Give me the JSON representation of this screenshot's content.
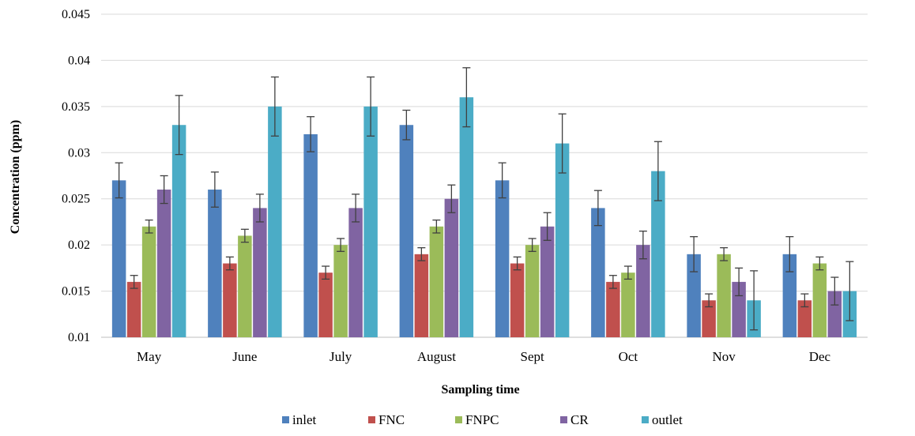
{
  "chart_data": {
    "type": "bar",
    "title": "",
    "xlabel": "Sampling time",
    "ylabel": "Concentration (ppm)",
    "ylim": [
      0.01,
      0.045
    ],
    "yticks": [
      "0.01",
      "0.015",
      "0.02",
      "0.025",
      "0.03",
      "0.035",
      "0.04",
      "0.045"
    ],
    "grid": true,
    "legend_position": "bottom",
    "categories": [
      "May",
      "June",
      "July",
      "August",
      "Sept",
      "Oct",
      "Nov",
      "Dec"
    ],
    "series": [
      {
        "name": "inlet",
        "color": "#4f81bd",
        "values": [
          0.027,
          0.026,
          0.032,
          0.033,
          0.027,
          0.024,
          0.019,
          0.019
        ],
        "errors": [
          0.0019,
          0.0019,
          0.0019,
          0.0016,
          0.0019,
          0.0019,
          0.0019,
          0.0019
        ]
      },
      {
        "name": "FNC",
        "color": "#c0504d",
        "values": [
          0.016,
          0.018,
          0.017,
          0.019,
          0.018,
          0.016,
          0.014,
          0.014
        ],
        "errors": [
          0.0007,
          0.0007,
          0.0007,
          0.0007,
          0.0007,
          0.0007,
          0.0007,
          0.0007
        ]
      },
      {
        "name": "FNPC",
        "color": "#9bbb59",
        "values": [
          0.022,
          0.021,
          0.02,
          0.022,
          0.02,
          0.017,
          0.019,
          0.018
        ],
        "errors": [
          0.0007,
          0.0007,
          0.0007,
          0.0007,
          0.0007,
          0.0007,
          0.0007,
          0.0007
        ]
      },
      {
        "name": "CR",
        "color": "#8064a2",
        "values": [
          0.026,
          0.024,
          0.024,
          0.025,
          0.022,
          0.02,
          0.016,
          0.015
        ],
        "errors": [
          0.0015,
          0.0015,
          0.0015,
          0.0015,
          0.0015,
          0.0015,
          0.0015,
          0.0015
        ]
      },
      {
        "name": "outlet",
        "color": "#4bacc6",
        "values": [
          0.033,
          0.035,
          0.035,
          0.036,
          0.031,
          0.028,
          0.014,
          0.015
        ],
        "errors": [
          0.0032,
          0.0032,
          0.0032,
          0.0032,
          0.0032,
          0.0032,
          0.0032,
          0.0032
        ]
      }
    ],
    "colors": {
      "gridline": "#d9d9d9",
      "axis": "#bfbfbf",
      "errorbar": "#404040"
    }
  }
}
